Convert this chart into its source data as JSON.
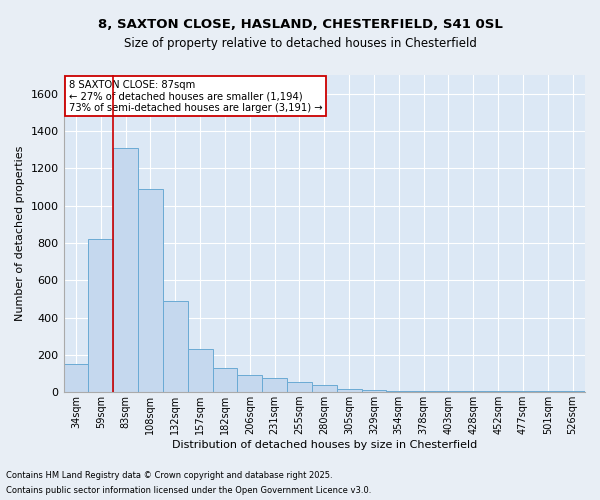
{
  "title_line1": "8, SAXTON CLOSE, HASLAND, CHESTERFIELD, S41 0SL",
  "title_line2": "Size of property relative to detached houses in Chesterfield",
  "xlabel": "Distribution of detached houses by size in Chesterfield",
  "ylabel": "Number of detached properties",
  "categories": [
    "34sqm",
    "59sqm",
    "83sqm",
    "108sqm",
    "132sqm",
    "157sqm",
    "182sqm",
    "206sqm",
    "231sqm",
    "255sqm",
    "280sqm",
    "305sqm",
    "329sqm",
    "354sqm",
    "378sqm",
    "403sqm",
    "428sqm",
    "452sqm",
    "477sqm",
    "501sqm",
    "526sqm"
  ],
  "values": [
    150,
    820,
    1310,
    1090,
    490,
    230,
    130,
    90,
    75,
    55,
    40,
    15,
    10,
    5,
    5,
    5,
    5,
    5,
    5,
    5,
    5
  ],
  "bar_color": "#c5d8ee",
  "bar_edge_color": "#6aaad4",
  "vline_x": 1.5,
  "vline_color": "#cc0000",
  "annotation_text": "8 SAXTON CLOSE: 87sqm\n← 27% of detached houses are smaller (1,194)\n73% of semi-detached houses are larger (3,191) →",
  "annotation_box_color": "#ffffff",
  "annotation_box_edge_color": "#cc0000",
  "ylim": [
    0,
    1700
  ],
  "yticks": [
    0,
    200,
    400,
    600,
    800,
    1000,
    1200,
    1400,
    1600
  ],
  "background_color": "#e8eef5",
  "plot_background_color": "#dce8f5",
  "grid_color": "#ffffff",
  "footer_line1": "Contains HM Land Registry data © Crown copyright and database right 2025.",
  "footer_line2": "Contains public sector information licensed under the Open Government Licence v3.0."
}
